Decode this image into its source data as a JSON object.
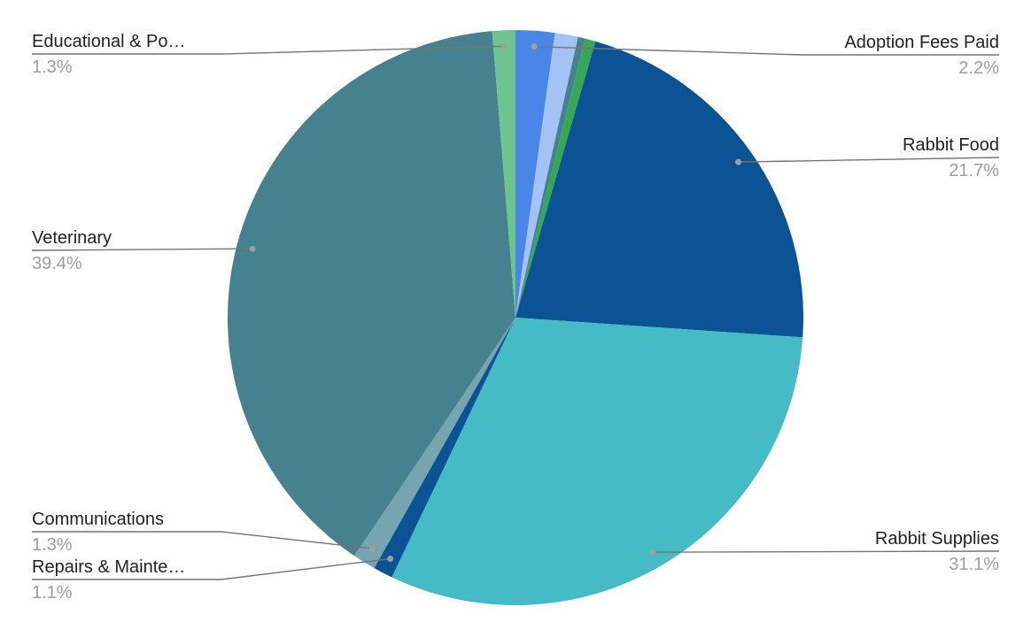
{
  "chart_data": {
    "type": "pie",
    "title": "",
    "slices": [
      {
        "name": "Adoption Fees Paid",
        "display": "2.2%",
        "value": 2.2,
        "color": "#4a86e8"
      },
      {
        "name": "",
        "display": "",
        "value": 1.3,
        "color": "#a4c2f4"
      },
      {
        "name": "",
        "display": "",
        "value": 0.4,
        "color": "#45818e"
      },
      {
        "name": "",
        "display": "",
        "value": 0.6,
        "color": "#34a853"
      },
      {
        "name": "Rabbit Food",
        "display": "21.7%",
        "value": 21.7,
        "color": "#0b5394"
      },
      {
        "name": "Rabbit Supplies",
        "display": "31.1%",
        "value": 31.1,
        "color": "#45bbc5"
      },
      {
        "name": "Repairs & Mainte…",
        "display": "1.1%",
        "value": 1.1,
        "color": "#0b5394"
      },
      {
        "name": "Communications",
        "display": "1.3%",
        "value": 1.3,
        "color": "#76a5af"
      },
      {
        "name": "Veterinary",
        "display": "39.4%",
        "value": 39.4,
        "color": "#45818e"
      },
      {
        "name": "Educational & Po…",
        "display": "1.3%",
        "value": 1.3,
        "color": "#6fc38e"
      }
    ],
    "start_angle": "top",
    "direction": "clockwise",
    "legend": "none"
  }
}
